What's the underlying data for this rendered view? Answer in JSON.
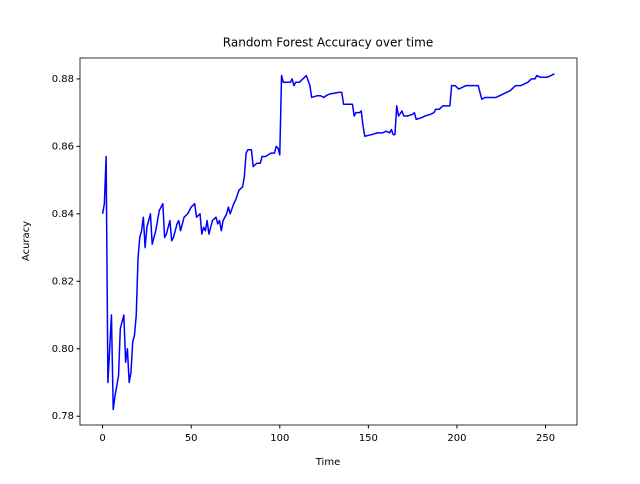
{
  "chart_data": {
    "type": "line",
    "title": "Random Forest Accuracy over time",
    "x_label": "Time",
    "y_label": "Acuracy",
    "series": [
      {
        "name": "accuracy",
        "color": "#0000ff",
        "x": [
          0,
          1,
          2,
          3,
          5,
          6,
          7,
          9,
          10,
          12,
          13,
          14,
          15,
          16,
          17,
          18,
          19,
          20,
          21,
          22,
          23,
          24,
          25,
          27,
          28,
          29,
          30,
          32,
          34,
          35,
          36,
          38,
          39,
          40,
          42,
          43,
          44,
          46,
          48,
          50,
          52,
          53,
          55,
          56,
          57,
          58,
          59,
          60,
          62,
          64,
          65,
          66,
          67,
          68,
          70,
          71,
          72,
          74,
          75,
          77,
          79,
          80,
          81,
          82,
          84,
          85,
          87,
          89,
          90,
          92,
          95,
          97,
          98,
          99,
          100,
          101,
          102,
          104,
          106,
          107,
          108,
          109,
          111,
          113,
          115,
          117,
          118,
          121,
          123,
          125,
          126,
          128,
          133,
          135,
          136,
          140,
          141,
          142,
          143,
          145,
          146,
          147,
          148,
          152,
          155,
          158,
          160,
          162,
          163,
          164,
          165,
          166,
          167,
          169,
          170,
          172,
          175,
          176,
          177,
          180,
          182,
          185,
          187,
          188,
          190,
          192,
          196,
          197,
          199,
          201,
          203,
          205,
          208,
          212,
          213,
          214,
          216,
          222,
          224,
          226,
          228,
          230,
          231,
          233,
          236,
          238,
          240,
          242,
          244,
          245,
          247,
          249,
          251,
          253,
          255
        ],
        "values": [
          0.84,
          0.843,
          0.857,
          0.79,
          0.81,
          0.782,
          0.786,
          0.792,
          0.806,
          0.81,
          0.796,
          0.8,
          0.79,
          0.793,
          0.802,
          0.804,
          0.81,
          0.827,
          0.833,
          0.835,
          0.839,
          0.83,
          0.836,
          0.84,
          0.831,
          0.833,
          0.835,
          0.841,
          0.843,
          0.833,
          0.834,
          0.838,
          0.832,
          0.833,
          0.837,
          0.838,
          0.835,
          0.839,
          0.84,
          0.842,
          0.843,
          0.839,
          0.84,
          0.834,
          0.836,
          0.835,
          0.838,
          0.834,
          0.838,
          0.839,
          0.837,
          0.838,
          0.835,
          0.838,
          0.84,
          0.842,
          0.84,
          0.843,
          0.844,
          0.847,
          0.848,
          0.851,
          0.858,
          0.859,
          0.859,
          0.854,
          0.855,
          0.855,
          0.857,
          0.857,
          0.858,
          0.858,
          0.86,
          0.8595,
          0.8575,
          0.881,
          0.879,
          0.879,
          0.879,
          0.88,
          0.878,
          0.879,
          0.879,
          0.88,
          0.881,
          0.878,
          0.8745,
          0.875,
          0.875,
          0.8745,
          0.875,
          0.8755,
          0.876,
          0.876,
          0.8725,
          0.8725,
          0.8725,
          0.869,
          0.87,
          0.87,
          0.8705,
          0.866,
          0.863,
          0.8635,
          0.864,
          0.864,
          0.8645,
          0.864,
          0.865,
          0.8635,
          0.8635,
          0.872,
          0.869,
          0.8705,
          0.869,
          0.869,
          0.8695,
          0.87,
          0.868,
          0.8685,
          0.869,
          0.8695,
          0.87,
          0.871,
          0.871,
          0.872,
          0.872,
          0.878,
          0.878,
          0.877,
          0.8775,
          0.878,
          0.878,
          0.878,
          0.876,
          0.874,
          0.8745,
          0.8745,
          0.875,
          0.8755,
          0.876,
          0.8765,
          0.877,
          0.878,
          0.878,
          0.8785,
          0.879,
          0.88,
          0.88,
          0.881,
          0.8805,
          0.8805,
          0.8805,
          0.881,
          0.8815
        ]
      }
    ],
    "xlim": [
      -12.75,
      267.75
    ],
    "xticks": [
      0,
      50,
      100,
      150,
      200,
      250
    ],
    "ylim": [
      0.7774,
      0.8862
    ],
    "yticks": [
      0.78,
      {
        "value": 0.8,
        "label": "0.80"
      },
      0.82,
      0.84,
      0.86,
      0.88
    ]
  }
}
